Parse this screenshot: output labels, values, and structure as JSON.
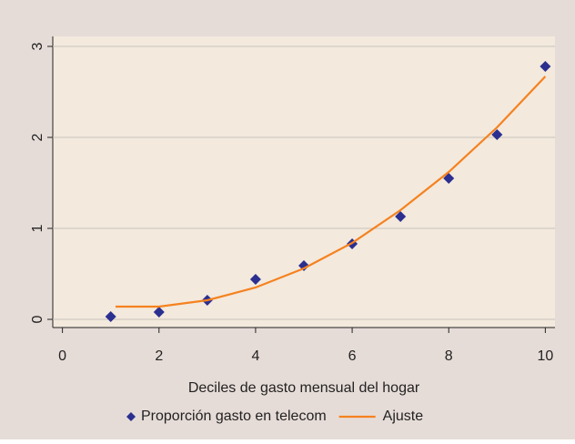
{
  "chart_data": {
    "type": "scatter",
    "x_label": "Deciles de gasto mensual del hogar",
    "xlim": [
      -0.2,
      10.2
    ],
    "xticks": [
      0,
      2,
      4,
      6,
      8,
      10
    ],
    "ylim": [
      -0.09,
      3.11
    ],
    "yticks": [
      0,
      1,
      2,
      3
    ],
    "grid": true,
    "series": [
      {
        "name": "Proporción gasto en telecom",
        "color": "#2b2f8f",
        "type": "scatter",
        "x": [
          1,
          2,
          3,
          4,
          5,
          6,
          7,
          8,
          9,
          10
        ],
        "values": [
          0.03,
          0.08,
          0.21,
          0.44,
          0.59,
          0.83,
          1.13,
          1.55,
          2.03,
          2.78
        ]
      },
      {
        "name": "Ajuste",
        "color": "#f5821f",
        "type": "line",
        "x": [
          1.1,
          2,
          3,
          4,
          5,
          6,
          7,
          8,
          9,
          10
        ],
        "values": [
          0.14,
          0.14,
          0.21,
          0.35,
          0.56,
          0.84,
          1.2,
          1.62,
          2.11,
          2.67
        ]
      }
    ]
  }
}
